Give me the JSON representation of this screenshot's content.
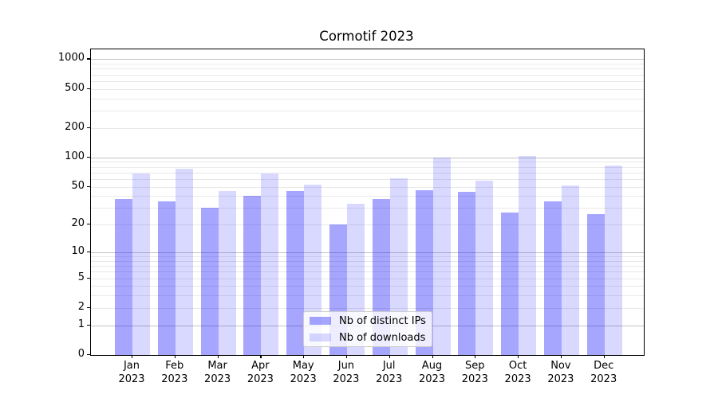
{
  "title": "Cormotif 2023",
  "chart_data": {
    "type": "bar",
    "title": "Cormotif 2023",
    "x_months": [
      "Jan",
      "Feb",
      "Mar",
      "Apr",
      "May",
      "Jun",
      "Jul",
      "Aug",
      "Sep",
      "Oct",
      "Nov",
      "Dec"
    ],
    "x_year": "2023",
    "series": [
      {
        "name": "Nb of distinct IPs",
        "slug": "distinct-ips",
        "fill": "#0000ff",
        "alpha": 0.35,
        "values": [
          37,
          35,
          30,
          40,
          45,
          20,
          37,
          46,
          44,
          27,
          35,
          26
        ]
      },
      {
        "name": "Nb of downloads",
        "slug": "downloads",
        "fill": "#0000ff",
        "alpha": 0.15,
        "values": [
          68,
          76,
          45,
          68,
          53,
          33,
          61,
          99,
          58,
          104,
          52,
          82
        ]
      }
    ],
    "y_axis": {
      "scale": "log10(value+1)",
      "tick_labels": [
        1000,
        500,
        200,
        100,
        50,
        20,
        10,
        5,
        2,
        1,
        0
      ],
      "range_max": 1260
    },
    "grid": {
      "enabled": true,
      "major_color": "#c3c3c3",
      "minor_color": "#e9e9e9"
    },
    "legend": {
      "position": "lower-center"
    }
  }
}
